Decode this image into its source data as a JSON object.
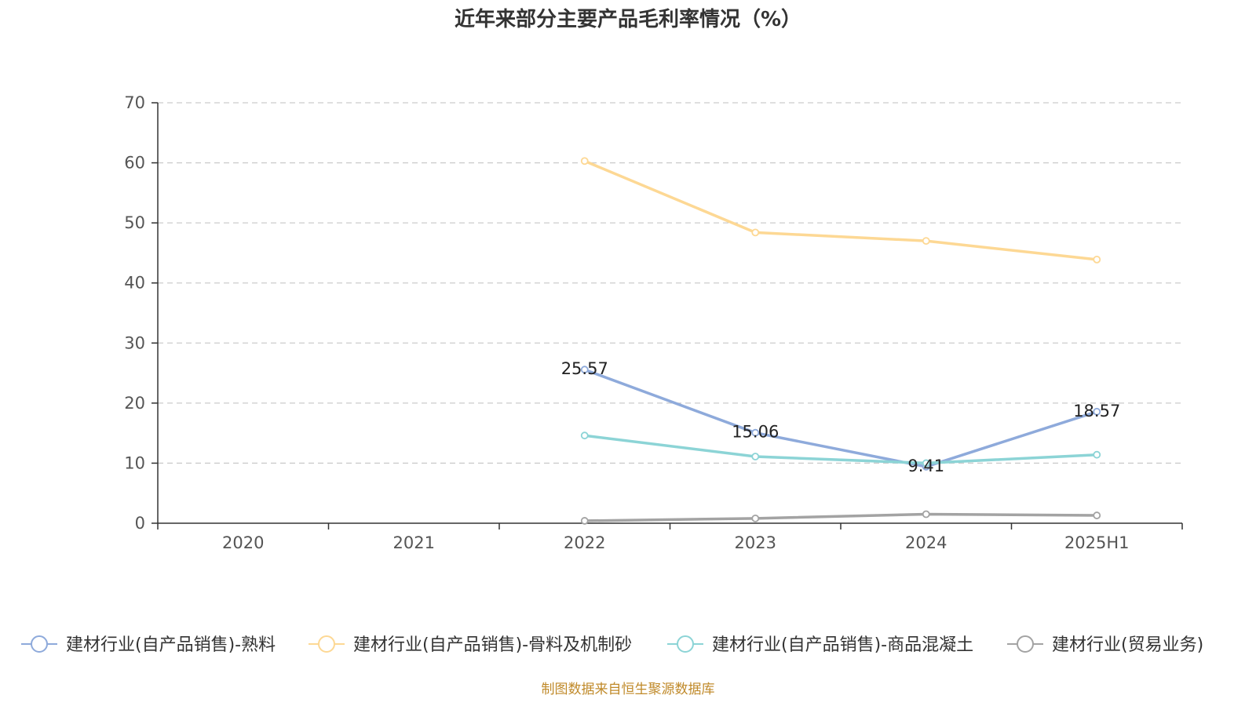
{
  "chart_data": {
    "type": "line",
    "title": "近年来部分主要产品毛利率情况（%）",
    "xlabel": "",
    "ylabel": "",
    "categories": [
      "2020",
      "2021",
      "2022",
      "2023",
      "2024",
      "2025H1"
    ],
    "ylim": [
      0,
      70
    ],
    "yticks": [
      0,
      10,
      20,
      30,
      40,
      50,
      60,
      70
    ],
    "grid": true,
    "legend_position": "bottom",
    "series": [
      {
        "name": "建材行业(自产品销售)-熟料",
        "color": "#8eaadb",
        "values": [
          null,
          null,
          25.57,
          15.06,
          9.41,
          18.57
        ],
        "labels": [
          "",
          "",
          "25.57",
          "15.06",
          "9.41",
          "18.57"
        ]
      },
      {
        "name": "建材行业(自产品销售)-骨料及机制砂",
        "color": "#fdd894",
        "values": [
          null,
          null,
          60.3,
          48.4,
          47.0,
          43.9
        ],
        "labels": [
          "",
          "",
          "",
          "",
          "",
          ""
        ]
      },
      {
        "name": "建材行业(自产品销售)-商品混凝土",
        "color": "#8cd4d6",
        "values": [
          null,
          null,
          14.6,
          11.1,
          10.0,
          11.4
        ],
        "labels": [
          "",
          "",
          "",
          "",
          "",
          ""
        ]
      },
      {
        "name": "建材行业(贸易业务)",
        "color": "#a3a3a3",
        "values": [
          null,
          null,
          0.4,
          0.8,
          1.5,
          1.3
        ],
        "labels": [
          "",
          "",
          "",
          "",
          "",
          ""
        ]
      }
    ],
    "source_note": "制图数据来自恒生聚源数据库"
  }
}
